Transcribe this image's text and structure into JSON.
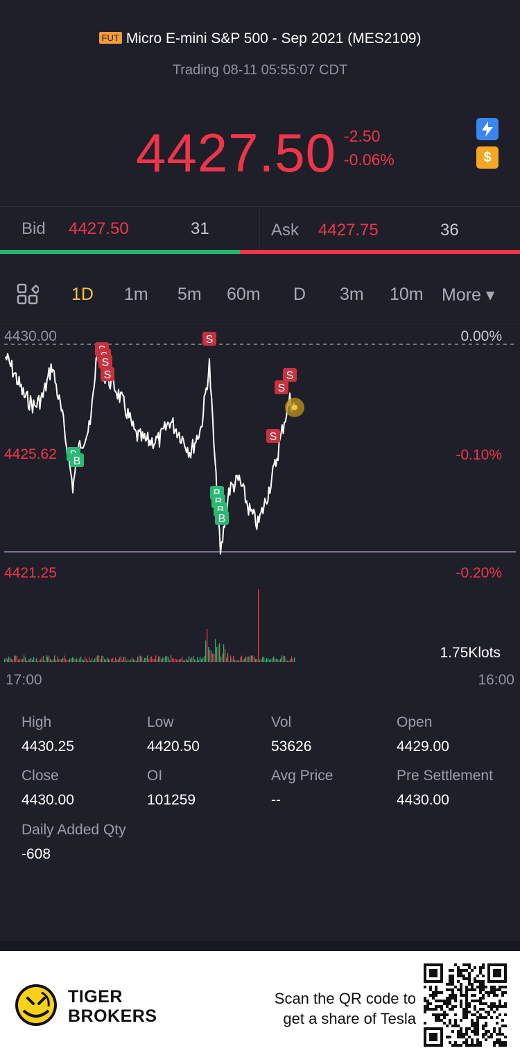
{
  "header": {
    "badge": "FUT",
    "title": "Micro E-mini S&P 500 - Sep 2021 (MES2109)",
    "status": "Trading 08-11 05:55:07 CDT"
  },
  "quote": {
    "price": "4427.50",
    "change": "-2.50",
    "change_pct": "-0.06%",
    "icons": [
      "lightning-icon",
      "dollar-icon"
    ]
  },
  "bid_ask": {
    "bid_label": "Bid",
    "bid_price": "4427.50",
    "bid_qty": "31",
    "ask_label": "Ask",
    "ask_price": "4427.75",
    "ask_qty": "36"
  },
  "tabs": {
    "grid_icon": "grid-icon",
    "items": [
      "1D",
      "1m",
      "5m",
      "60m",
      "D",
      "3m",
      "10m"
    ],
    "active": "1D",
    "more": "More ▾"
  },
  "chart": {
    "price_top": "4430.00",
    "price_mid": "4425.62",
    "price_bottom": "4421.25",
    "pct_top": "0.00%",
    "pct_mid": "-0.10%",
    "pct_bottom": "-0.20%",
    "volume_label": "1.75Klots",
    "time_start": "17:00",
    "time_end": "16:00",
    "colors": {
      "line": "#ffffff",
      "sell_marker": "#c8323f",
      "buy_marker": "#2bb872",
      "vol_green": "#21b46b",
      "vol_red": "#f0354a",
      "ref_line": "#9f8fb3"
    }
  },
  "stats": {
    "high_label": "High",
    "high": "4430.25",
    "low_label": "Low",
    "low": "4420.50",
    "vol_label": "Vol",
    "vol": "53626",
    "open_label": "Open",
    "open": "4429.00",
    "close_label": "Close",
    "close": "4430.00",
    "oi_label": "OI",
    "oi": "101259",
    "avg_label": "Avg Price",
    "avg": "--",
    "presettle_label": "Pre Settlement",
    "presettle": "4430.00",
    "added_label": "Daily Added Qty",
    "added": "-608"
  },
  "footer": {
    "brand_line1": "TIGER",
    "brand_line2": "BROKERS",
    "promo_line1": "Scan the QR code to",
    "promo_line2": "get a share of Tesla",
    "logo": "tiger-logo-icon",
    "qr": "qr-code-icon"
  }
}
